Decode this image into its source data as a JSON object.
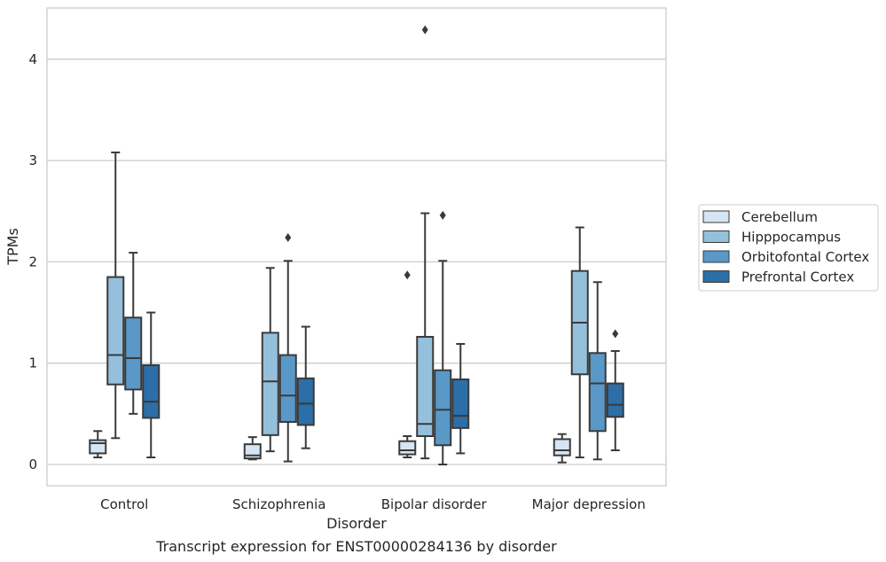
{
  "chart_data": {
    "type": "box",
    "caption": "Transcript expression for ENST00000284136 by disorder",
    "xlabel": "Disorder",
    "ylabel": "TPMs",
    "ylim": [
      -0.2,
      4.5
    ],
    "yticks": [
      0,
      1,
      2,
      3,
      4
    ],
    "grid": "horizontal",
    "legend_position": "right",
    "categories": [
      "Control",
      "Schizophrenia",
      "Bipolar disorder",
      "Major depression"
    ],
    "series": [
      {
        "name": "Cerebellum",
        "color": "#d6e5f3",
        "boxes": [
          {
            "whisker_low": 0.07,
            "q1": 0.11,
            "median": 0.21,
            "q3": 0.24,
            "whisker_high": 0.33,
            "outliers": []
          },
          {
            "whisker_low": 0.05,
            "q1": 0.06,
            "median": 0.09,
            "q3": 0.2,
            "whisker_high": 0.27,
            "outliers": []
          },
          {
            "whisker_low": 0.07,
            "q1": 0.1,
            "median": 0.14,
            "q3": 0.23,
            "whisker_high": 0.28,
            "outliers": [
              1.87
            ]
          },
          {
            "whisker_low": 0.02,
            "q1": 0.09,
            "median": 0.14,
            "q3": 0.25,
            "whisker_high": 0.3,
            "outliers": []
          }
        ]
      },
      {
        "name": "Hipppocampus",
        "color": "#94c0dc",
        "boxes": [
          {
            "whisker_low": 0.26,
            "q1": 0.79,
            "median": 1.08,
            "q3": 1.85,
            "whisker_high": 3.08,
            "outliers": []
          },
          {
            "whisker_low": 0.13,
            "q1": 0.29,
            "median": 0.82,
            "q3": 1.3,
            "whisker_high": 1.94,
            "outliers": []
          },
          {
            "whisker_low": 0.06,
            "q1": 0.28,
            "median": 0.4,
            "q3": 1.26,
            "whisker_high": 2.48,
            "outliers": [
              4.29
            ]
          },
          {
            "whisker_low": 0.07,
            "q1": 0.89,
            "median": 1.4,
            "q3": 1.91,
            "whisker_high": 2.34,
            "outliers": []
          }
        ]
      },
      {
        "name": "Orbitofontal Cortex",
        "color": "#5a98c7",
        "boxes": [
          {
            "whisker_low": 0.5,
            "q1": 0.74,
            "median": 1.05,
            "q3": 1.45,
            "whisker_high": 2.09,
            "outliers": []
          },
          {
            "whisker_low": 0.03,
            "q1": 0.42,
            "median": 0.68,
            "q3": 1.08,
            "whisker_high": 2.01,
            "outliers": [
              2.24
            ]
          },
          {
            "whisker_low": 0.0,
            "q1": 0.19,
            "median": 0.54,
            "q3": 0.93,
            "whisker_high": 2.01,
            "outliers": [
              2.46
            ]
          },
          {
            "whisker_low": 0.05,
            "q1": 0.33,
            "median": 0.8,
            "q3": 1.1,
            "whisker_high": 1.8,
            "outliers": []
          }
        ]
      },
      {
        "name": "Prefrontal Cortex",
        "color": "#2c6ea7",
        "boxes": [
          {
            "whisker_low": 0.07,
            "q1": 0.46,
            "median": 0.62,
            "q3": 0.98,
            "whisker_high": 1.5,
            "outliers": []
          },
          {
            "whisker_low": 0.16,
            "q1": 0.39,
            "median": 0.6,
            "q3": 0.85,
            "whisker_high": 1.36,
            "outliers": []
          },
          {
            "whisker_low": 0.11,
            "q1": 0.36,
            "median": 0.48,
            "q3": 0.84,
            "whisker_high": 1.19,
            "outliers": []
          },
          {
            "whisker_low": 0.14,
            "q1": 0.47,
            "median": 0.59,
            "q3": 0.8,
            "whisker_high": 1.12,
            "outliers": [
              1.29
            ]
          }
        ]
      }
    ]
  }
}
